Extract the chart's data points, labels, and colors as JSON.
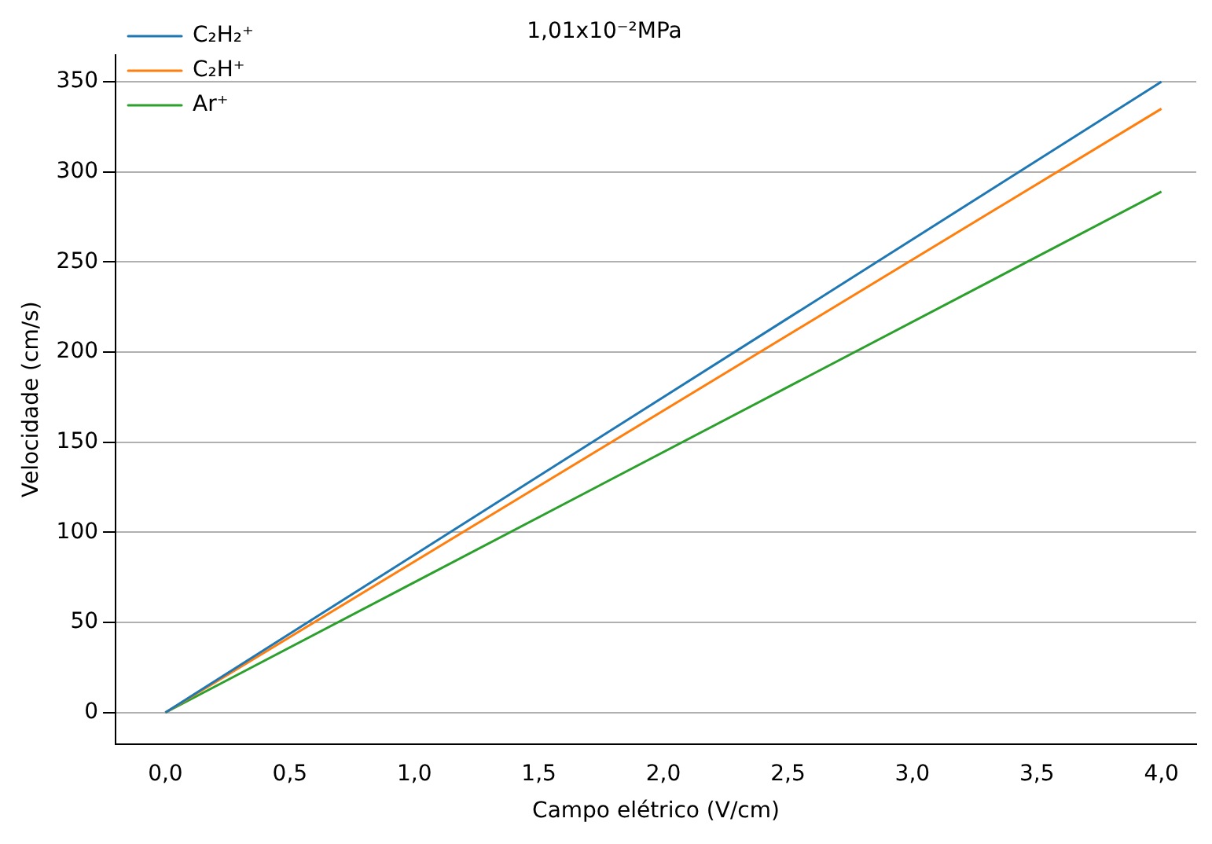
{
  "chart_data": {
    "type": "line",
    "title": "1,01x10⁻²MPa",
    "xlabel": "Campo elétrico (V/cm)",
    "ylabel": "Velocidade (cm/s)",
    "x": [
      0,
      4
    ],
    "series": [
      {
        "name": "C₂H₂⁺",
        "color": "#1f77b4",
        "values": [
          0,
          350
        ]
      },
      {
        "name": "C₂H⁺",
        "color": "#ff7f0e",
        "values": [
          0,
          335
        ]
      },
      {
        "name": "Ar⁺",
        "color": "#2ca02c",
        "values": [
          0,
          289
        ]
      }
    ],
    "xlim": [
      -0.2,
      4.14
    ],
    "ylim": [
      -17.5,
      365
    ],
    "xticks": [
      {
        "value": 0,
        "label": "0,0"
      },
      {
        "value": 0.5,
        "label": "0,5"
      },
      {
        "value": 1,
        "label": "1,0"
      },
      {
        "value": 1.5,
        "label": "1,5"
      },
      {
        "value": 2,
        "label": "2,0"
      },
      {
        "value": 2.5,
        "label": "2,5"
      },
      {
        "value": 3,
        "label": "3,0"
      },
      {
        "value": 3.5,
        "label": "3,5"
      },
      {
        "value": 4,
        "label": "4,0"
      }
    ],
    "yticks": [
      0,
      50,
      100,
      150,
      200,
      250,
      300,
      350
    ],
    "grid": "y",
    "legend": "top left",
    "marker": "none",
    "line_style": "solid"
  }
}
